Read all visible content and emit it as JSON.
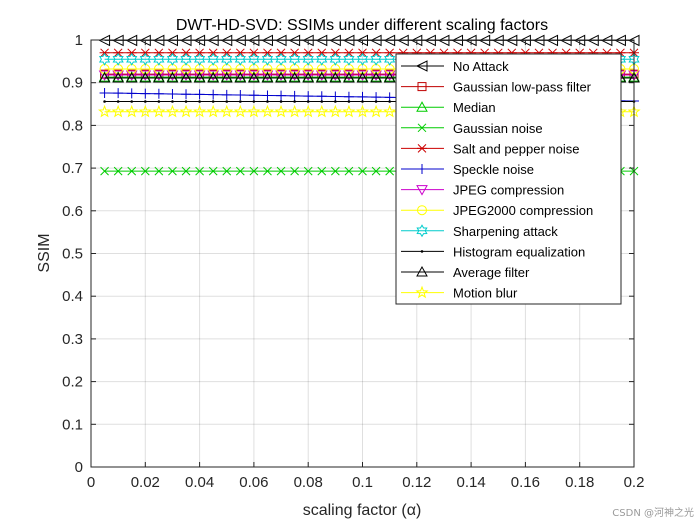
{
  "chart_data": {
    "type": "line",
    "title": "DWT-HD-SVD: SSIMs under different scaling factors",
    "xlabel": "scaling factor (α)",
    "ylabel": "SSIM",
    "xlim": [
      0,
      0.2
    ],
    "ylim": [
      0,
      1
    ],
    "x_ticks": [
      0,
      0.02,
      0.04,
      0.06,
      0.08,
      0.1,
      0.12,
      0.14,
      0.16,
      0.18,
      0.2
    ],
    "x_tick_labels": [
      "0",
      "0.02",
      "0.04",
      "0.06",
      "0.08",
      "0.1",
      "0.12",
      "0.14",
      "0.16",
      "0.18",
      "0.2"
    ],
    "y_ticks": [
      0,
      0.1,
      0.2,
      0.3,
      0.4,
      0.5,
      0.6,
      0.7,
      0.8,
      0.9,
      1
    ],
    "y_tick_labels": [
      "0",
      "0.1",
      "0.2",
      "0.3",
      "0.4",
      "0.5",
      "0.6",
      "0.7",
      "0.8",
      "0.9",
      "1"
    ],
    "grid": true,
    "legend_position": "top-right",
    "x_start": 0.005,
    "x_step": 0.005,
    "series": [
      {
        "name": "No Attack",
        "color": "#000000",
        "marker": "triangle-left",
        "y": 0.999
      },
      {
        "name": "Gaussian low-pass filter",
        "color": "#c00000",
        "marker": "square",
        "y": 0.92
      },
      {
        "name": "Median",
        "color": "#00cc00",
        "marker": "triangle-up",
        "y": 0.913
      },
      {
        "name": "Gaussian noise",
        "color": "#00cc00",
        "marker": "x",
        "y": 0.693
      },
      {
        "name": "Salt and pepper noise",
        "color": "#cc0000",
        "marker": "asterisk",
        "y": 0.97
      },
      {
        "name": "Speckle noise",
        "color": "#0000cc",
        "marker": "plus",
        "start": 0.876,
        "end": 0.857
      },
      {
        "name": "JPEG compression",
        "color": "#cc00cc",
        "marker": "triangle-down",
        "y": 0.918
      },
      {
        "name": "JPEG2000 compression",
        "color": "#ffff00",
        "marker": "circle",
        "y": 0.932
      },
      {
        "name": "Sharpening attack",
        "color": "#00cccc",
        "marker": "hexagram",
        "y": 0.955
      },
      {
        "name": "Histogram equalization",
        "color": "#000000",
        "marker": "dot",
        "y": 0.856
      },
      {
        "name": "Average filter",
        "color": "#000000",
        "marker": "triangle-up",
        "y": 0.911
      },
      {
        "name": "Motion blur",
        "color": "#ffff00",
        "marker": "pentagram",
        "y": 0.832
      }
    ]
  },
  "watermark": "CSDN @河神之光"
}
